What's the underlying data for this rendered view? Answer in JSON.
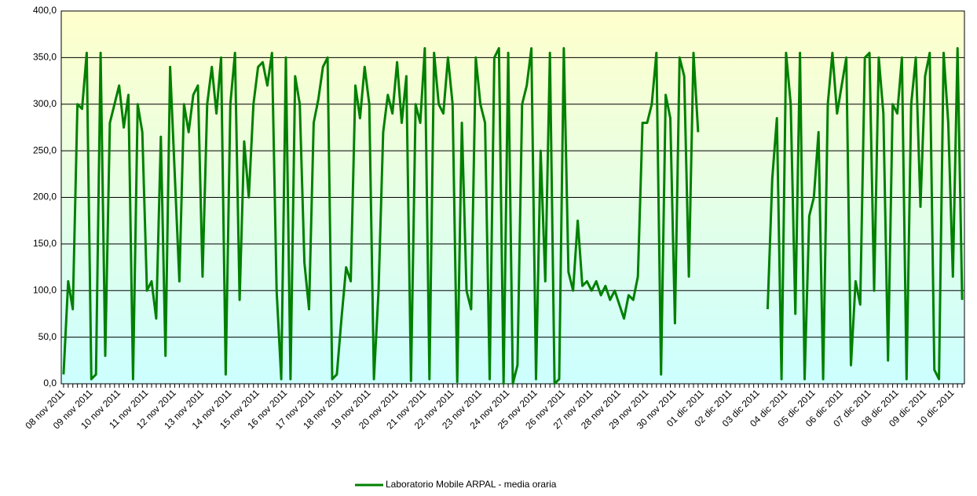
{
  "chart_data": {
    "type": "line",
    "categories": [
      "08 nov 2011",
      null,
      null,
      null,
      null,
      null,
      "09 nov 2011",
      null,
      null,
      null,
      null,
      null,
      "10 nov 2011",
      null,
      null,
      null,
      null,
      null,
      "11 nov 2011",
      null,
      null,
      null,
      null,
      null,
      "12 nov 2011",
      null,
      null,
      null,
      null,
      null,
      "13 nov 2011",
      null,
      null,
      null,
      null,
      null,
      "14 nov 2011",
      null,
      null,
      null,
      null,
      null,
      "15 nov 2011",
      null,
      null,
      null,
      null,
      null,
      "16 nov 2011",
      null,
      null,
      null,
      null,
      null,
      "17 nov 2011",
      null,
      null,
      null,
      null,
      null,
      "18 nov 2011",
      null,
      null,
      null,
      null,
      null,
      "19 nov 2011",
      null,
      null,
      null,
      null,
      null,
      "20 nov 2011",
      null,
      null,
      null,
      null,
      null,
      "21 nov 2011",
      null,
      null,
      null,
      null,
      null,
      "22 nov 2011",
      null,
      null,
      null,
      null,
      null,
      "23 nov 2011",
      null,
      null,
      null,
      null,
      null,
      "24 nov 2011",
      null,
      null,
      null,
      null,
      null,
      "25 nov 2011",
      null,
      null,
      null,
      null,
      null,
      "26 nov 2011",
      null,
      null,
      null,
      null,
      null,
      "27 nov 2011",
      null,
      null,
      null,
      null,
      null,
      "28 nov 2011",
      null,
      null,
      null,
      null,
      null,
      "29 nov 2011",
      null,
      null,
      null,
      null,
      null,
      "30 nov 2011",
      null,
      null,
      null,
      null,
      null,
      "01 dic 2011",
      null,
      null,
      null,
      null,
      null,
      "02 dic 2011",
      null,
      null,
      null,
      null,
      null,
      "03 dic 2011",
      null,
      null,
      null,
      null,
      null,
      "04 dic 2011",
      null,
      null,
      null,
      null,
      null,
      "05 dic 2011",
      null,
      null,
      null,
      null,
      null,
      "06 dic 2011",
      null,
      null,
      null,
      null,
      null,
      "07 dic 2011",
      null,
      null,
      null,
      null,
      null,
      "08 dic 2011",
      null,
      null,
      null,
      null,
      null,
      "09 dic 2011",
      null,
      null,
      null,
      null,
      null,
      "10 dic 2011",
      null,
      null
    ],
    "series": [
      {
        "name": "Laboratorio Mobile ARPAL - media oraria",
        "color": "#008000",
        "values": [
          10,
          110,
          80,
          300,
          295,
          355,
          5,
          10,
          355,
          30,
          280,
          300,
          320,
          275,
          310,
          5,
          300,
          270,
          100,
          110,
          70,
          265,
          30,
          340,
          225,
          110,
          300,
          270,
          310,
          320,
          115,
          300,
          340,
          290,
          350,
          10,
          300,
          355,
          90,
          260,
          200,
          300,
          340,
          345,
          320,
          355,
          100,
          5,
          350,
          5,
          330,
          300,
          130,
          80,
          280,
          305,
          340,
          350,
          5,
          10,
          70,
          125,
          110,
          320,
          285,
          340,
          300,
          5,
          100,
          270,
          310,
          290,
          345,
          280,
          330,
          3,
          300,
          280,
          360,
          5,
          355,
          300,
          290,
          350,
          300,
          2,
          280,
          100,
          80,
          350,
          300,
          280,
          5,
          350,
          360,
          0,
          355,
          0,
          20,
          300,
          320,
          360,
          5,
          250,
          110,
          355,
          0,
          5,
          360,
          120,
          100,
          175,
          105,
          110,
          100,
          110,
          95,
          105,
          90,
          100,
          85,
          70,
          95,
          90,
          115,
          280,
          280,
          300,
          355,
          10,
          310,
          285,
          65,
          350,
          330,
          115,
          355,
          270,
          null,
          null,
          null,
          null,
          null,
          null,
          null,
          null,
          null,
          null,
          null,
          null,
          null,
          null,
          80,
          220,
          285,
          5,
          355,
          300,
          75,
          355,
          5,
          180,
          200,
          270,
          5,
          300,
          355,
          290,
          320,
          350,
          20,
          110,
          85,
          350,
          355,
          100,
          350,
          290,
          25,
          300,
          290,
          350,
          5,
          300,
          350,
          190,
          330,
          355,
          15,
          5,
          355,
          280,
          115,
          360,
          90
        ]
      }
    ],
    "ylim": [
      0,
      400
    ],
    "yticks": [
      {
        "value": 0,
        "label": "0,0"
      },
      {
        "value": 50,
        "label": "50,0"
      },
      {
        "value": 100,
        "label": "100,0"
      },
      {
        "value": 150,
        "label": "150,0"
      },
      {
        "value": 200,
        "label": "200,0"
      },
      {
        "value": 250,
        "label": "250,0"
      },
      {
        "value": 300,
        "label": "300,0"
      },
      {
        "value": 350,
        "label": "350,0"
      },
      {
        "value": 400,
        "label": "400,0"
      }
    ],
    "grid": true,
    "legend": "bottom"
  }
}
